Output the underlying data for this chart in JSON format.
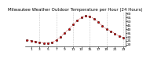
{
  "title": "Milwaukee Weather Outdoor Temperature per Hour (24 Hours)",
  "hours": [
    0,
    1,
    2,
    3,
    4,
    5,
    6,
    7,
    8,
    9,
    10,
    11,
    12,
    13,
    14,
    15,
    16,
    17,
    18,
    19,
    20,
    21,
    22,
    23
  ],
  "temps": [
    26,
    25,
    24,
    23,
    22,
    22,
    23,
    26,
    30,
    35,
    40,
    46,
    51,
    55,
    57,
    56,
    53,
    49,
    44,
    40,
    37,
    34,
    31,
    29
  ],
  "ylim": [
    18,
    62
  ],
  "xlim": [
    -0.5,
    23.5
  ],
  "ytick_values": [
    20,
    25,
    30,
    35,
    40,
    45,
    50,
    55,
    60
  ],
  "ytick_labels": [
    "20",
    "25",
    "30",
    "35",
    "40",
    "45",
    "50",
    "55",
    "60"
  ],
  "xtick_values": [
    1,
    3,
    5,
    7,
    9,
    11,
    13,
    15,
    17,
    19,
    21,
    23
  ],
  "xtick_labels": [
    "1",
    "3",
    "5",
    "7",
    "9",
    "11",
    "13",
    "15",
    "17",
    "19",
    "21",
    "23"
  ],
  "grid_color": "#999999",
  "line_color": "#dd0000",
  "marker_color": "#dd0000",
  "marker_edge_color": "#000000",
  "bg_color": "#ffffff",
  "title_fontsize": 4.0,
  "tick_fontsize": 3.2,
  "marker_size": 1.8,
  "line_width": 0.5,
  "grid_xticks": [
    3,
    7,
    11,
    15,
    19,
    23
  ]
}
